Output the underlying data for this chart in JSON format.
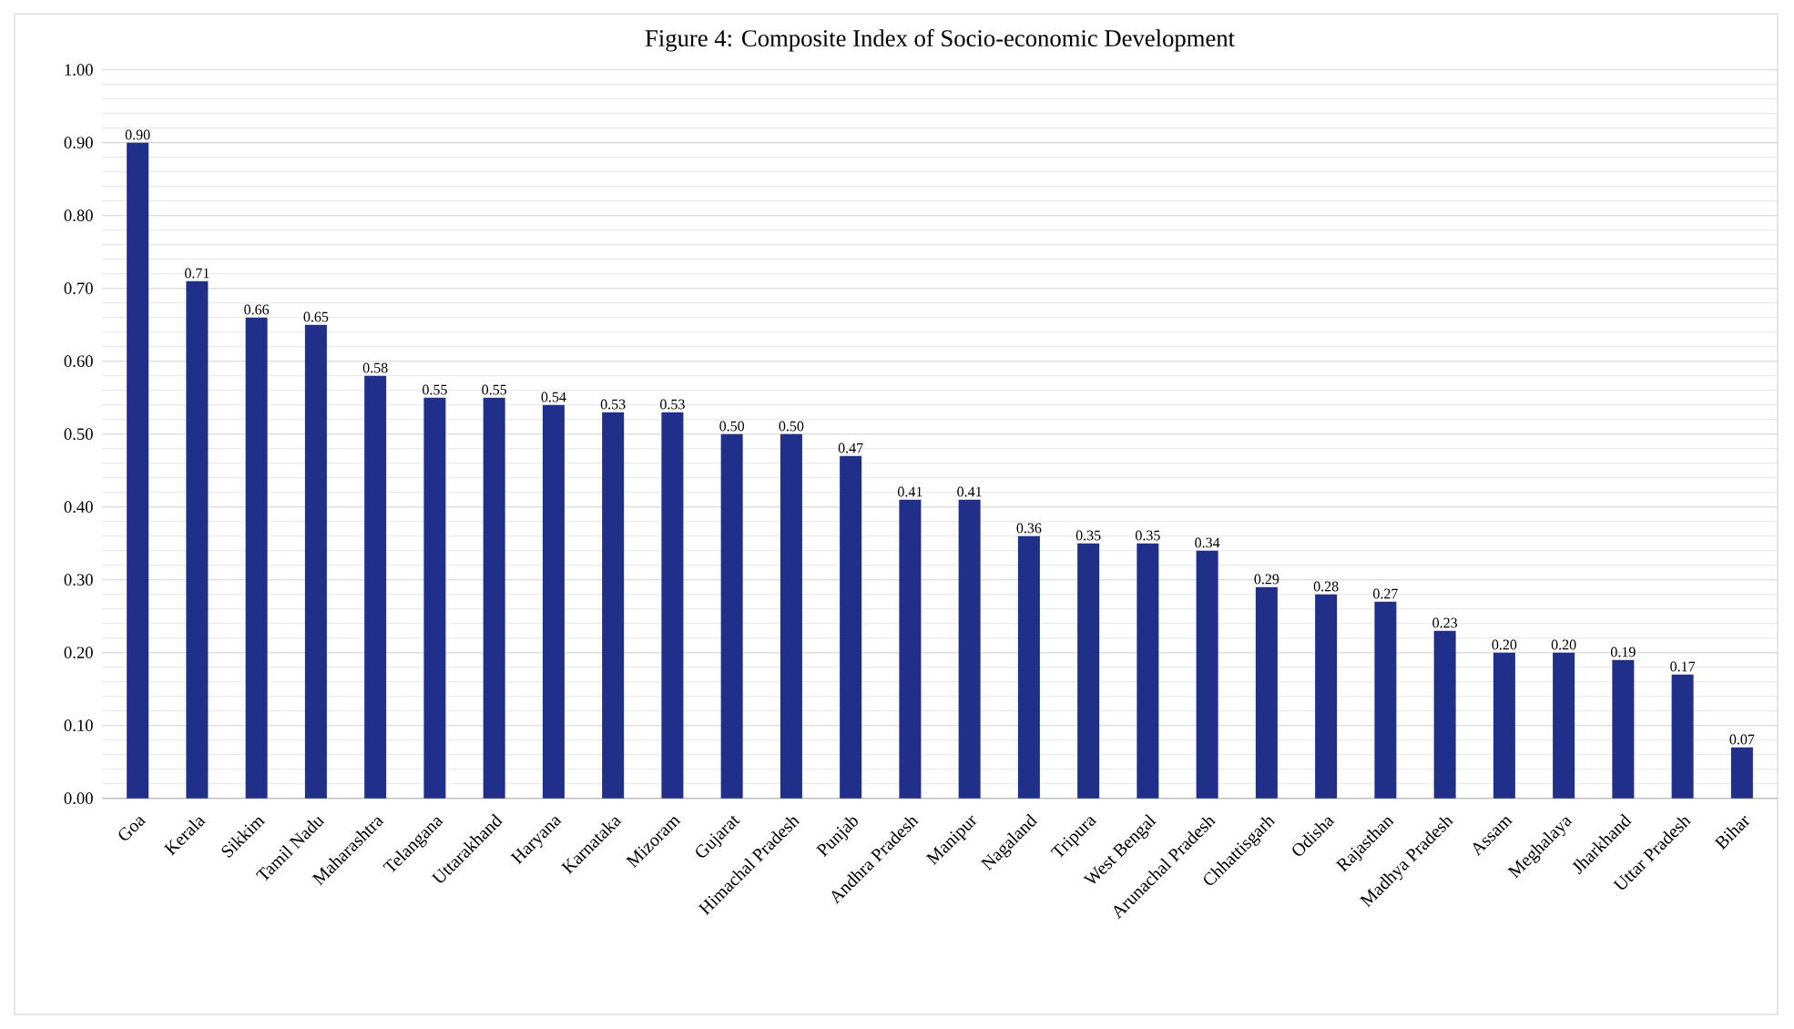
{
  "chart_data": {
    "type": "bar",
    "title": "Figure 4: Composite Index of Socio-economic Development",
    "categories": [
      "Goa",
      "Kerala",
      "Sikkim",
      "Tamil Nadu",
      "Maharashtra",
      "Telangana",
      "Uttarakhand",
      "Haryana",
      "Karnataka",
      "Mizoram",
      "Gujarat",
      "Himachal Pradesh",
      "Punjab",
      "Andhra Pradesh",
      "Manipur",
      "Nagaland",
      "Tripura",
      "West Bengal",
      "Arunachal Pradesh",
      "Chhattisgarh",
      "Odisha",
      "Rajasthan",
      "Madhya Pradesh",
      "Assam",
      "Meghalaya",
      "Jharkhand",
      "Uttar Pradesh",
      "Bihar"
    ],
    "values": [
      0.9,
      0.71,
      0.66,
      0.65,
      0.58,
      0.55,
      0.55,
      0.54,
      0.53,
      0.53,
      0.5,
      0.5,
      0.47,
      0.41,
      0.41,
      0.36,
      0.35,
      0.35,
      0.34,
      0.29,
      0.28,
      0.27,
      0.23,
      0.2,
      0.2,
      0.19,
      0.17,
      0.07
    ],
    "value_labels": [
      "0.90",
      "0.71",
      "0.66",
      "0.65",
      "0.58",
      "0.55",
      "0.55",
      "0.54",
      "0.53",
      "0.53",
      "0.50",
      "0.50",
      "0.47",
      "0.41",
      "0.41",
      "0.36",
      "0.35",
      "0.35",
      "0.34",
      "0.29",
      "0.28",
      "0.27",
      "0.23",
      "0.20",
      "0.20",
      "0.19",
      "0.17",
      "0.07"
    ],
    "color": "#1f2f8a",
    "ylim": [
      0,
      1
    ],
    "yticks": [
      {
        "value": 0,
        "label": "0.00"
      },
      {
        "value": 0.1,
        "label": "0.10"
      },
      {
        "value": 0.2,
        "label": "0.20"
      },
      {
        "value": 0.3,
        "label": "0.30"
      },
      {
        "value": 0.4,
        "label": "0.40"
      },
      {
        "value": 0.5,
        "label": "0.50"
      },
      {
        "value": 0.6,
        "label": "0.60"
      },
      {
        "value": 0.7,
        "label": "0.70"
      },
      {
        "value": 0.8,
        "label": "0.80"
      },
      {
        "value": 0.9,
        "label": "0.90"
      },
      {
        "value": 1,
        "label": "1.00"
      }
    ],
    "grid": "y"
  }
}
